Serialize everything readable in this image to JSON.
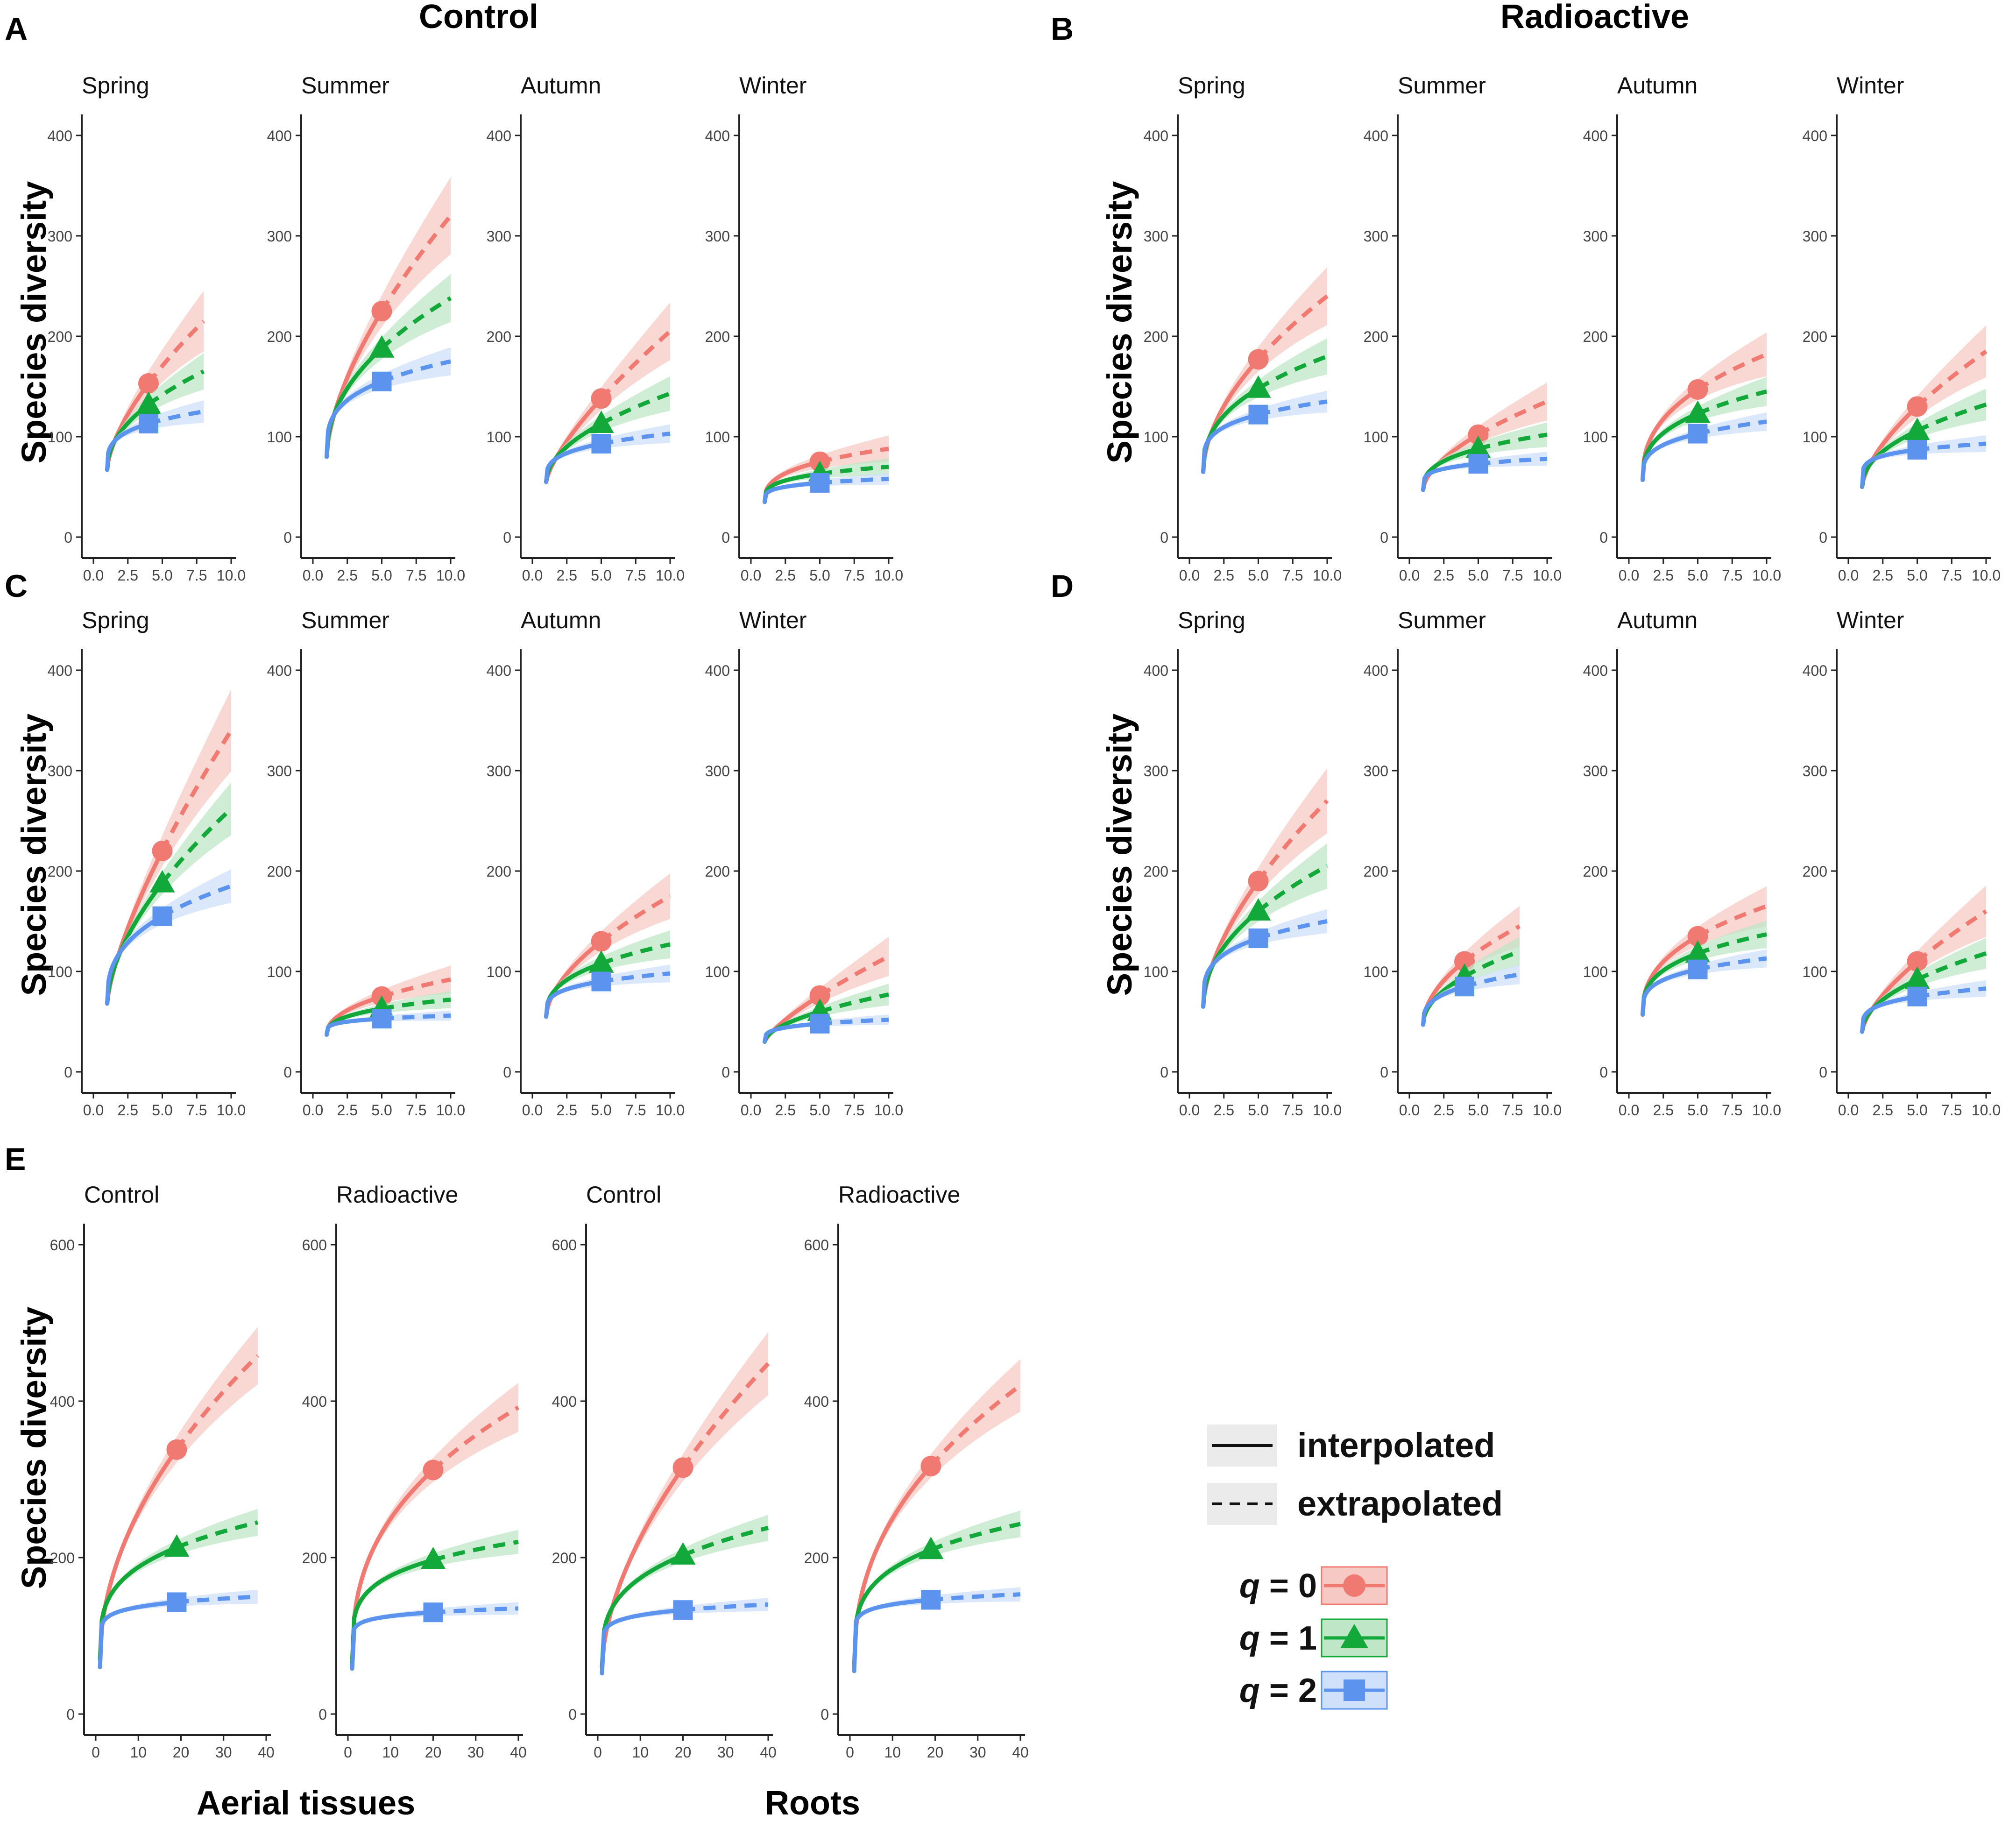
{
  "figure": {
    "legend": {
      "line_types": [
        {
          "label": "interpolated",
          "style": "solid"
        },
        {
          "label": "extrapolated",
          "style": "dashed"
        }
      ],
      "q_prefix": "q",
      "q_items": [
        {
          "q": "0",
          "series": "q0"
        },
        {
          "q": "1",
          "series": "q1"
        },
        {
          "q": "2",
          "series": "q2"
        }
      ]
    }
  },
  "colors": {
    "q0": "#F07A72",
    "q1": "#12A83A",
    "q2": "#5B93EE",
    "q0_fill": "#F7C9C4",
    "q1_fill": "#BFE6C7",
    "q2_fill": "#CFE0FA",
    "axis": "#222222",
    "tick_label": "#444444"
  },
  "icons": {
    "q0": "circle-marker",
    "q1": "triangle-marker",
    "q2": "square-marker"
  },
  "chart_data": [
    {
      "panel": "A",
      "group_title": "Control",
      "ylabel": "Species diversity",
      "xlabel": "",
      "type": "line",
      "xlim": [
        0,
        10
      ],
      "xticks": [
        0,
        2.5,
        5,
        7.5,
        10
      ],
      "xtick_labels": [
        "0.0",
        "2.5",
        "5.0",
        "7.5",
        "10.0"
      ],
      "ylim": [
        0,
        400
      ],
      "yticks": [
        0,
        100,
        200,
        300,
        400
      ],
      "facets": [
        {
          "title": "Spring",
          "x0": 1,
          "x_ref": 4,
          "x_end": 8,
          "series": [
            {
              "q": 0,
              "y0": 67,
              "ref": 153,
              "end": 215,
              "ci": 0.14
            },
            {
              "q": 1,
              "y0": 67,
              "ref": 132,
              "end": 165,
              "ci": 0.11
            },
            {
              "q": 2,
              "y0": 67,
              "ref": 113,
              "end": 125,
              "ci": 0.09
            }
          ]
        },
        {
          "title": "Summer",
          "x0": 1,
          "x_ref": 5,
          "x_end": 10,
          "series": [
            {
              "q": 0,
              "y0": 80,
              "ref": 225,
              "end": 320,
              "ci": 0.12
            },
            {
              "q": 1,
              "y0": 80,
              "ref": 188,
              "end": 238,
              "ci": 0.1
            },
            {
              "q": 2,
              "y0": 80,
              "ref": 155,
              "end": 175,
              "ci": 0.08
            }
          ]
        },
        {
          "title": "Autumn",
          "x0": 1,
          "x_ref": 5,
          "x_end": 10,
          "series": [
            {
              "q": 0,
              "y0": 55,
              "ref": 138,
              "end": 205,
              "ci": 0.14
            },
            {
              "q": 1,
              "y0": 55,
              "ref": 113,
              "end": 143,
              "ci": 0.12
            },
            {
              "q": 2,
              "y0": 55,
              "ref": 93,
              "end": 103,
              "ci": 0.09
            }
          ]
        },
        {
          "title": "Winter",
          "x0": 1,
          "x_ref": 5,
          "x_end": 10,
          "series": [
            {
              "q": 0,
              "y0": 35,
              "ref": 75,
              "end": 88,
              "ci": 0.15
            },
            {
              "q": 1,
              "y0": 35,
              "ref": 63,
              "end": 70,
              "ci": 0.12
            },
            {
              "q": 2,
              "y0": 35,
              "ref": 54,
              "end": 58,
              "ci": 0.1
            }
          ]
        }
      ]
    },
    {
      "panel": "B",
      "group_title": "Radioactive",
      "ylabel": "Species diversity",
      "xlabel": "",
      "type": "line",
      "xlim": [
        0,
        10
      ],
      "xticks": [
        0,
        2.5,
        5,
        7.5,
        10
      ],
      "xtick_labels": [
        "0.0",
        "2.5",
        "5.0",
        "7.5",
        "10.0"
      ],
      "ylim": [
        0,
        400
      ],
      "yticks": [
        0,
        100,
        200,
        300,
        400
      ],
      "facets": [
        {
          "title": "Spring",
          "x0": 1,
          "x_ref": 5,
          "x_end": 10,
          "series": [
            {
              "q": 0,
              "y0": 65,
              "ref": 177,
              "end": 240,
              "ci": 0.12
            },
            {
              "q": 1,
              "y0": 65,
              "ref": 148,
              "end": 180,
              "ci": 0.1
            },
            {
              "q": 2,
              "y0": 65,
              "ref": 122,
              "end": 135,
              "ci": 0.08
            }
          ]
        },
        {
          "title": "Summer",
          "x0": 1,
          "x_ref": 5,
          "x_end": 10,
          "series": [
            {
              "q": 0,
              "y0": 47,
              "ref": 102,
              "end": 135,
              "ci": 0.14
            },
            {
              "q": 1,
              "y0": 47,
              "ref": 88,
              "end": 102,
              "ci": 0.12
            },
            {
              "q": 2,
              "y0": 47,
              "ref": 73,
              "end": 78,
              "ci": 0.09
            }
          ]
        },
        {
          "title": "Autumn",
          "x0": 1,
          "x_ref": 5,
          "x_end": 10,
          "series": [
            {
              "q": 0,
              "y0": 57,
              "ref": 147,
              "end": 182,
              "ci": 0.12
            },
            {
              "q": 1,
              "y0": 57,
              "ref": 123,
              "end": 145,
              "ci": 0.1
            },
            {
              "q": 2,
              "y0": 57,
              "ref": 103,
              "end": 115,
              "ci": 0.08
            }
          ]
        },
        {
          "title": "Winter",
          "x0": 1,
          "x_ref": 5,
          "x_end": 10,
          "series": [
            {
              "q": 0,
              "y0": 50,
              "ref": 130,
              "end": 185,
              "ci": 0.14
            },
            {
              "q": 1,
              "y0": 50,
              "ref": 106,
              "end": 132,
              "ci": 0.12
            },
            {
              "q": 2,
              "y0": 50,
              "ref": 87,
              "end": 93,
              "ci": 0.09
            }
          ]
        }
      ]
    },
    {
      "panel": "C",
      "group_title": "",
      "ylabel": "Species diversity",
      "xlabel": "",
      "type": "line",
      "xlim": [
        0,
        10
      ],
      "xticks": [
        0,
        2.5,
        5,
        7.5,
        10
      ],
      "xtick_labels": [
        "0.0",
        "2.5",
        "5.0",
        "7.5",
        "10.0"
      ],
      "ylim": [
        0,
        400
      ],
      "yticks": [
        0,
        100,
        200,
        300,
        400
      ],
      "facets": [
        {
          "title": "Spring",
          "x0": 1,
          "x_ref": 5,
          "x_end": 10,
          "series": [
            {
              "q": 0,
              "y0": 68,
              "ref": 220,
              "end": 340,
              "ci": 0.12
            },
            {
              "q": 1,
              "y0": 68,
              "ref": 188,
              "end": 262,
              "ci": 0.1
            },
            {
              "q": 2,
              "y0": 68,
              "ref": 155,
              "end": 185,
              "ci": 0.09
            }
          ]
        },
        {
          "title": "Summer",
          "x0": 1,
          "x_ref": 5,
          "x_end": 10,
          "series": [
            {
              "q": 0,
              "y0": 37,
              "ref": 75,
              "end": 92,
              "ci": 0.15
            },
            {
              "q": 1,
              "y0": 37,
              "ref": 63,
              "end": 72,
              "ci": 0.12
            },
            {
              "q": 2,
              "y0": 37,
              "ref": 53,
              "end": 56,
              "ci": 0.09
            }
          ]
        },
        {
          "title": "Autumn",
          "x0": 1,
          "x_ref": 5,
          "x_end": 10,
          "series": [
            {
              "q": 0,
              "y0": 55,
              "ref": 130,
              "end": 175,
              "ci": 0.13
            },
            {
              "q": 1,
              "y0": 55,
              "ref": 108,
              "end": 127,
              "ci": 0.11
            },
            {
              "q": 2,
              "y0": 55,
              "ref": 90,
              "end": 98,
              "ci": 0.09
            }
          ]
        },
        {
          "title": "Winter",
          "x0": 1,
          "x_ref": 5,
          "x_end": 10,
          "series": [
            {
              "q": 0,
              "y0": 30,
              "ref": 76,
              "end": 115,
              "ci": 0.17
            },
            {
              "q": 1,
              "y0": 30,
              "ref": 60,
              "end": 77,
              "ci": 0.14
            },
            {
              "q": 2,
              "y0": 30,
              "ref": 48,
              "end": 52,
              "ci": 0.1
            }
          ]
        }
      ]
    },
    {
      "panel": "D",
      "group_title": "",
      "ylabel": "Species diversity",
      "xlabel": "",
      "type": "line",
      "xlim": [
        0,
        10
      ],
      "xticks": [
        0,
        2.5,
        5,
        7.5,
        10
      ],
      "xtick_labels": [
        "0.0",
        "2.5",
        "5.0",
        "7.5",
        "10.0"
      ],
      "ylim": [
        0,
        400
      ],
      "yticks": [
        0,
        100,
        200,
        300,
        400
      ],
      "facets": [
        {
          "title": "Spring",
          "x0": 1,
          "x_ref": 5,
          "x_end": 10,
          "series": [
            {
              "q": 0,
              "y0": 65,
              "ref": 190,
              "end": 270,
              "ci": 0.12
            },
            {
              "q": 1,
              "y0": 65,
              "ref": 160,
              "end": 205,
              "ci": 0.11
            },
            {
              "q": 2,
              "y0": 65,
              "ref": 133,
              "end": 150,
              "ci": 0.08
            }
          ]
        },
        {
          "title": "Summer",
          "x0": 1,
          "x_ref": 4,
          "x_end": 8,
          "series": [
            {
              "q": 0,
              "y0": 47,
              "ref": 110,
              "end": 145,
              "ci": 0.14
            },
            {
              "q": 1,
              "y0": 47,
              "ref": 95,
              "end": 120,
              "ci": 0.12
            },
            {
              "q": 2,
              "y0": 47,
              "ref": 85,
              "end": 97,
              "ci": 0.1
            }
          ]
        },
        {
          "title": "Autumn",
          "x0": 1,
          "x_ref": 5,
          "x_end": 10,
          "series": [
            {
              "q": 0,
              "y0": 57,
              "ref": 135,
              "end": 165,
              "ci": 0.12
            },
            {
              "q": 1,
              "y0": 57,
              "ref": 118,
              "end": 137,
              "ci": 0.1
            },
            {
              "q": 2,
              "y0": 57,
              "ref": 102,
              "end": 113,
              "ci": 0.08
            }
          ]
        },
        {
          "title": "Winter",
          "x0": 1,
          "x_ref": 5,
          "x_end": 10,
          "series": [
            {
              "q": 0,
              "y0": 40,
              "ref": 110,
              "end": 160,
              "ci": 0.16
            },
            {
              "q": 1,
              "y0": 40,
              "ref": 92,
              "end": 118,
              "ci": 0.13
            },
            {
              "q": 2,
              "y0": 40,
              "ref": 75,
              "end": 83,
              "ci": 0.1
            }
          ]
        }
      ]
    },
    {
      "panel": "E",
      "group_title": "",
      "ylabel": "Species diversity",
      "xlabels": [
        "Aerial tissues",
        "Roots"
      ],
      "type": "line",
      "xlim": [
        0,
        40
      ],
      "xticks": [
        0,
        10,
        20,
        30,
        40
      ],
      "xtick_labels": [
        "0",
        "10",
        "20",
        "30",
        "40"
      ],
      "ylim": [
        0,
        600
      ],
      "yticks": [
        0,
        200,
        400,
        600
      ],
      "facets": [
        {
          "title": "Control",
          "x0": 1,
          "x_ref": 19,
          "x_end": 38,
          "series": [
            {
              "q": 0,
              "y0": 70,
              "ref": 338,
              "end": 458,
              "ci": 0.08
            },
            {
              "q": 1,
              "y0": 70,
              "ref": 213,
              "end": 245,
              "ci": 0.07
            },
            {
              "q": 2,
              "y0": 60,
              "ref": 143,
              "end": 150,
              "ci": 0.06
            }
          ]
        },
        {
          "title": "Radioactive",
          "x0": 1,
          "x_ref": 20,
          "x_end": 40,
          "series": [
            {
              "q": 0,
              "y0": 65,
              "ref": 312,
              "end": 392,
              "ci": 0.08
            },
            {
              "q": 1,
              "y0": 65,
              "ref": 197,
              "end": 220,
              "ci": 0.07
            },
            {
              "q": 2,
              "y0": 58,
              "ref": 130,
              "end": 135,
              "ci": 0.06
            }
          ]
        },
        {
          "title": "Control",
          "x0": 1,
          "x_ref": 20,
          "x_end": 40,
          "series": [
            {
              "q": 0,
              "y0": 60,
              "ref": 315,
              "end": 448,
              "ci": 0.09
            },
            {
              "q": 1,
              "y0": 60,
              "ref": 203,
              "end": 238,
              "ci": 0.07
            },
            {
              "q": 2,
              "y0": 52,
              "ref": 133,
              "end": 140,
              "ci": 0.06
            }
          ]
        },
        {
          "title": "Radioactive",
          "x0": 1,
          "x_ref": 19,
          "x_end": 40,
          "series": [
            {
              "q": 0,
              "y0": 60,
              "ref": 317,
              "end": 420,
              "ci": 0.08
            },
            {
              "q": 1,
              "y0": 60,
              "ref": 210,
              "end": 243,
              "ci": 0.07
            },
            {
              "q": 2,
              "y0": 55,
              "ref": 146,
              "end": 153,
              "ci": 0.06
            }
          ]
        }
      ]
    }
  ]
}
